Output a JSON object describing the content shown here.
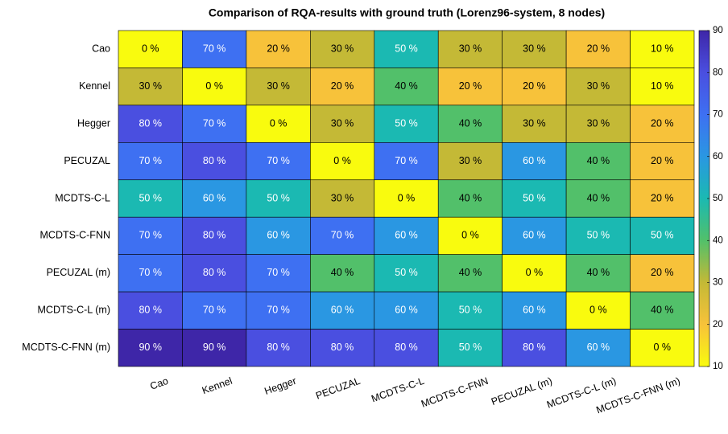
{
  "chart_data": {
    "type": "heatmap",
    "title": "Comparison of RQA-results with ground truth (Lorenz96-system, 8 nodes)",
    "x_categories": [
      "Cao",
      "Kennel",
      "Hegger",
      "PECUZAL",
      "MCDTS-C-L",
      "MCDTS-C-FNN",
      "PECUZAL (m)",
      "MCDTS-C-L (m)",
      "MCDTS-C-FNN (m)"
    ],
    "y_categories": [
      "Cao",
      "Kennel",
      "Hegger",
      "PECUZAL",
      "MCDTS-C-L",
      "MCDTS-C-FNN",
      "PECUZAL (m)",
      "MCDTS-C-L (m)",
      "MCDTS-C-FNN (m)"
    ],
    "values": [
      [
        0,
        70,
        20,
        30,
        50,
        30,
        30,
        20,
        10
      ],
      [
        30,
        0,
        30,
        20,
        40,
        20,
        20,
        30,
        10
      ],
      [
        80,
        70,
        0,
        30,
        50,
        40,
        30,
        30,
        20
      ],
      [
        70,
        80,
        70,
        0,
        70,
        30,
        60,
        40,
        20
      ],
      [
        50,
        60,
        50,
        30,
        0,
        40,
        50,
        40,
        20
      ],
      [
        70,
        80,
        60,
        70,
        60,
        0,
        60,
        50,
        50
      ],
      [
        70,
        80,
        70,
        40,
        50,
        40,
        0,
        40,
        20
      ],
      [
        80,
        70,
        70,
        60,
        60,
        50,
        60,
        0,
        40
      ],
      [
        90,
        90,
        80,
        80,
        80,
        50,
        80,
        60,
        0
      ]
    ],
    "value_labels": [
      [
        "0 %",
        "70 %",
        "20 %",
        "30 %",
        "50 %",
        "30 %",
        "30 %",
        "20 %",
        "10 %"
      ],
      [
        "30 %",
        "0 %",
        "30 %",
        "20 %",
        "40 %",
        "20 %",
        "20 %",
        "30 %",
        "10 %"
      ],
      [
        "80 %",
        "70 %",
        "0 %",
        "30 %",
        "50 %",
        "40 %",
        "30 %",
        "30 %",
        "20 %"
      ],
      [
        "70 %",
        "80 %",
        "70 %",
        "0 %",
        "70 %",
        "30 %",
        "60 %",
        "40 %",
        "20 %"
      ],
      [
        "50 %",
        "60 %",
        "50 %",
        "30 %",
        "0 %",
        "40 %",
        "50 %",
        "40 %",
        "20 %"
      ],
      [
        "70 %",
        "80 %",
        "60 %",
        "70 %",
        "60 %",
        "0 %",
        "60 %",
        "50 %",
        "50 %"
      ],
      [
        "70 %",
        "80 %",
        "70 %",
        "40 %",
        "50 %",
        "40 %",
        "0 %",
        "40 %",
        "20 %"
      ],
      [
        "80 %",
        "70 %",
        "70 %",
        "60 %",
        "60 %",
        "50 %",
        "60 %",
        "0 %",
        "40 %"
      ],
      [
        "90 %",
        "90 %",
        "80 %",
        "80 %",
        "80 %",
        "50 %",
        "80 %",
        "60 %",
        "0 %"
      ]
    ],
    "clim": [
      10,
      90
    ],
    "cticks": [
      10,
      20,
      30,
      40,
      50,
      60,
      70,
      80,
      90
    ],
    "colormap": [
      "#f9fb0e",
      "#f7c23a",
      "#c4b936",
      "#52c06a",
      "#1bb9b2",
      "#2a97e2",
      "#3e70f2",
      "#4a4fe0",
      "#3e26a8"
    ]
  }
}
